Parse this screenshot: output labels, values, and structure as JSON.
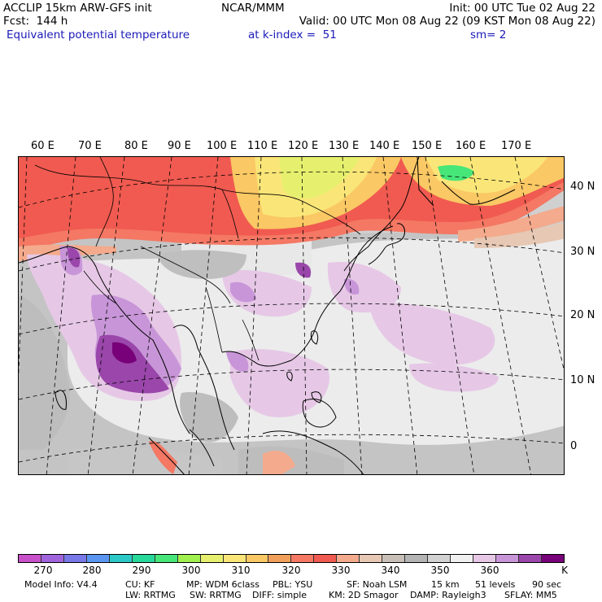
{
  "header": {
    "left_line1": "ACCLIP 15km ARW-GFS init",
    "left_line2": "Fcst:  144 h",
    "left_line3": "Equivalent potential temperature",
    "center_line1": "NCAR/MMM",
    "init": "Init: 00 UTC Tue 02 Aug 22",
    "valid": "Valid: 00 UTC Mon 08 Aug 22 (09 KST Mon 08 Aug 22)",
    "level": "at k-index =  51",
    "smooth": "sm= 2"
  },
  "longitude_labels": [
    "60 E",
    "70 E",
    "80 E",
    "90 E",
    "100 E",
    "110 E",
    "120 E",
    "130 E",
    "140 E",
    "150 E",
    "160 E",
    "170 E"
  ],
  "latitude_labels": [
    "40 N",
    "30 N",
    "20 N",
    "10 N",
    "0"
  ],
  "colorbar": {
    "colors": [
      "#c850c8",
      "#a064dc",
      "#7878e6",
      "#5a96f0",
      "#2cc8c8",
      "#28d89a",
      "#46e678",
      "#a0f050",
      "#e6f06e",
      "#fae678",
      "#fac864",
      "#f0a05a",
      "#f47864",
      "#f05a50",
      "#f4aa8c",
      "#e6c8b4",
      "#c8c0b8",
      "#b4b4b4",
      "#d2d2d2",
      "#f0f0f0",
      "#e6c8e6",
      "#c896d8",
      "#9a46aa",
      "#780078"
    ],
    "tick_labels": [
      "270",
      "280",
      "290",
      "300",
      "310",
      "320",
      "330",
      "340",
      "350",
      "360"
    ],
    "unit": "K"
  },
  "model_info": {
    "line1": [
      "Model Info: V4.4",
      "CU: KF",
      "MP: WDM 6class",
      "PBL: YSU",
      "SF: Noah LSM",
      "15 km",
      "51 levels",
      "90 sec"
    ],
    "line2": [
      "LW: RRTMG",
      "SW: RRTMG",
      "DIFF: simple",
      "KM: 2D Smagor",
      "DAMP: Rayleigh3",
      "SFLAY: MM5"
    ]
  }
}
